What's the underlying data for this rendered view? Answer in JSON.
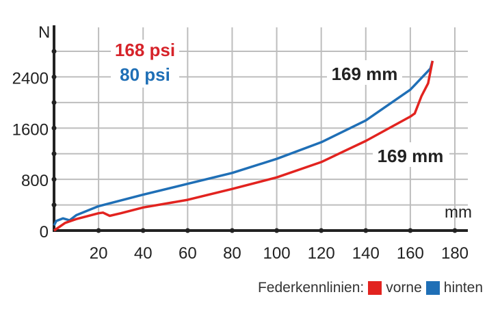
{
  "chart_data": {
    "type": "line",
    "title": "",
    "xlabel": "mm",
    "ylabel": "N",
    "xlim": [
      0,
      180
    ],
    "ylim": [
      0,
      2800
    ],
    "x_ticks": [
      20,
      40,
      60,
      80,
      100,
      120,
      140,
      160,
      180
    ],
    "y_ticks": [
      0,
      800,
      1600,
      2400
    ],
    "grid": true,
    "series": [
      {
        "name": "vorne",
        "color": "#e2231f",
        "x": [
          0,
          5,
          10,
          20,
          22,
          25,
          30,
          40,
          60,
          80,
          100,
          120,
          140,
          160,
          162,
          165,
          168,
          170
        ],
        "y": [
          0,
          120,
          180,
          270,
          280,
          230,
          270,
          360,
          480,
          650,
          830,
          1070,
          1400,
          1780,
          1830,
          2100,
          2300,
          2650
        ]
      },
      {
        "name": "hinten",
        "color": "#1f6fb6",
        "x": [
          0,
          1,
          4,
          7,
          10,
          20,
          40,
          60,
          80,
          100,
          120,
          140,
          160,
          169,
          170
        ],
        "y": [
          80,
          150,
          190,
          160,
          240,
          380,
          560,
          730,
          900,
          1120,
          1380,
          1720,
          2200,
          2530,
          2650
        ]
      }
    ],
    "annotations": [
      {
        "text": "168 psi",
        "color": "#d6232a"
      },
      {
        "text": "80 psi",
        "color": "#1f6fb6"
      },
      {
        "text": "169 mm",
        "color": "#222222"
      },
      {
        "text": "169 mm",
        "color": "#222222"
      }
    ],
    "legend": {
      "title": "Federkennlinien:",
      "items": [
        "vorne",
        "hinten"
      ],
      "placement": "bottom-right"
    }
  }
}
